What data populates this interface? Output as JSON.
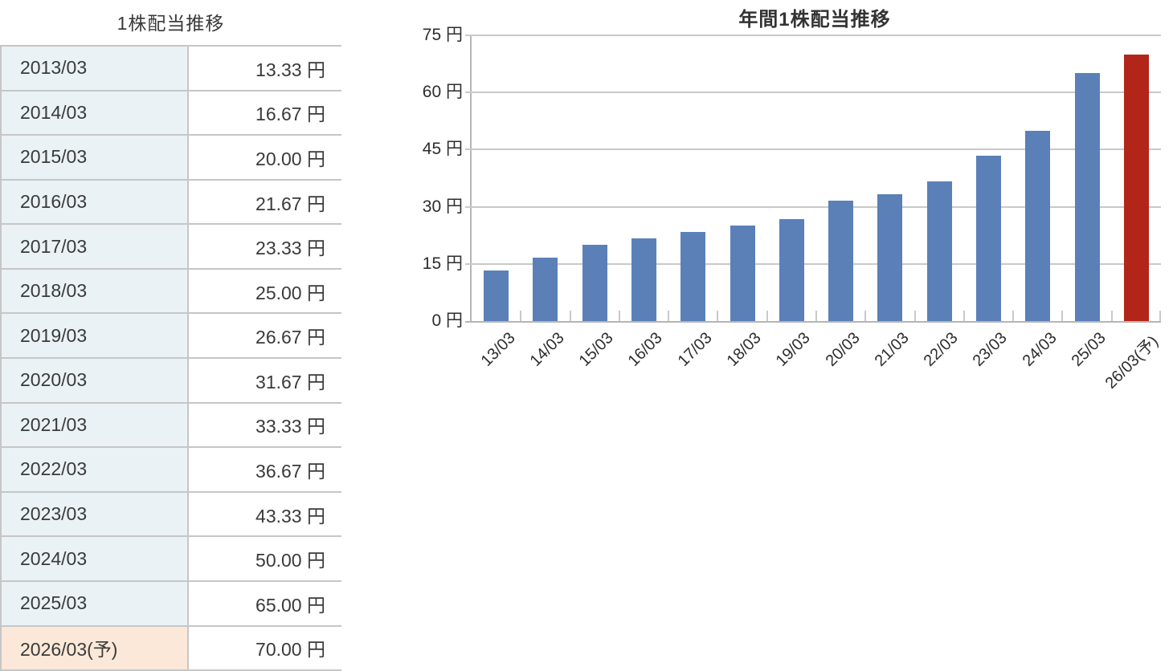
{
  "dividend_table": {
    "title": "1株配当推移",
    "rows": [
      {
        "period": "2013/03",
        "value": "13.33 円",
        "forecast": false
      },
      {
        "period": "2014/03",
        "value": "16.67 円",
        "forecast": false
      },
      {
        "period": "2015/03",
        "value": "20.00 円",
        "forecast": false
      },
      {
        "period": "2016/03",
        "value": "21.67 円",
        "forecast": false
      },
      {
        "period": "2017/03",
        "value": "23.33 円",
        "forecast": false
      },
      {
        "period": "2018/03",
        "value": "25.00 円",
        "forecast": false
      },
      {
        "period": "2019/03",
        "value": "26.67 円",
        "forecast": false
      },
      {
        "period": "2020/03",
        "value": "31.67 円",
        "forecast": false
      },
      {
        "period": "2021/03",
        "value": "33.33 円",
        "forecast": false
      },
      {
        "period": "2022/03",
        "value": "36.67 円",
        "forecast": false
      },
      {
        "period": "2023/03",
        "value": "43.33 円",
        "forecast": false
      },
      {
        "period": "2024/03",
        "value": "50.00 円",
        "forecast": false
      },
      {
        "period": "2025/03",
        "value": "65.00 円",
        "forecast": false
      },
      {
        "period": "2026/03(予)",
        "value": "70.00 円",
        "forecast": true
      }
    ],
    "colors": {
      "period_bg": "#eaf2f6",
      "forecast_period_bg": "#fbe8d8",
      "border": "#c6c6c6",
      "text": "#3a3a3a"
    }
  },
  "chart_data": {
    "type": "bar",
    "title": "年間1株配当推移",
    "categories": [
      "13/03",
      "14/03",
      "15/03",
      "16/03",
      "17/03",
      "18/03",
      "19/03",
      "20/03",
      "21/03",
      "22/03",
      "23/03",
      "24/03",
      "25/03",
      "26/03(予)"
    ],
    "values": [
      13.33,
      16.67,
      20.0,
      21.67,
      23.33,
      25.0,
      26.67,
      31.67,
      33.33,
      36.67,
      43.33,
      50.0,
      65.0,
      70.0
    ],
    "forecast_index": 13,
    "ylim": [
      0,
      75
    ],
    "yticks": [
      0,
      15,
      30,
      45,
      60,
      75
    ],
    "ytick_labels": [
      "0 円",
      "15 円",
      "30 円",
      "45 円",
      "60 円",
      "75 円"
    ],
    "grid": true,
    "legend_position": "none",
    "colors": {
      "bar": "#5b80b8",
      "forecast_bar": "#b2261a",
      "grid": "#c9c9c9",
      "axis": "#b5b5b5",
      "text": "#2d2d2d"
    }
  }
}
